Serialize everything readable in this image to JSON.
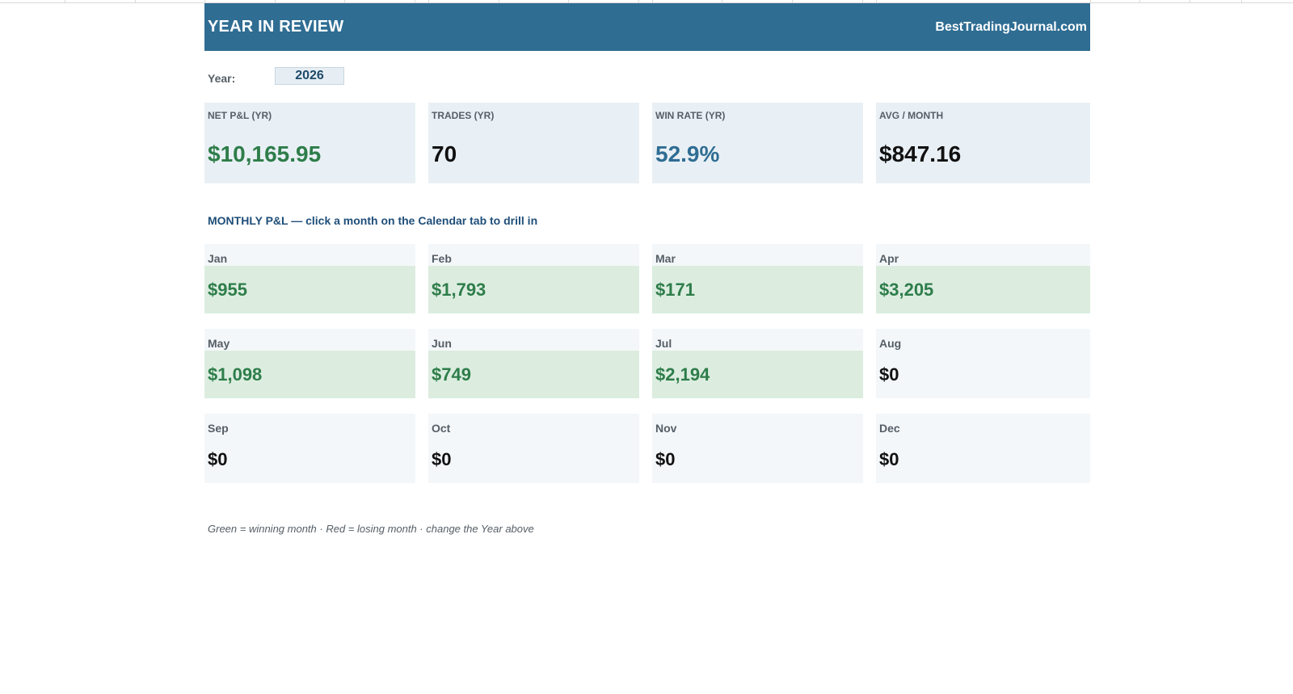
{
  "header": {
    "title": "YEAR IN REVIEW",
    "site": "BestTradingJournal.com"
  },
  "year": {
    "label": "Year:",
    "value": "2026"
  },
  "kpis": [
    {
      "label": "NET P&L (YR)",
      "value": "$10,165.95",
      "color": "#2e7d4a"
    },
    {
      "label": "TRADES (YR)",
      "value": "70",
      "color": "#111111"
    },
    {
      "label": "WIN RATE (YR)",
      "value": "52.9%",
      "color": "#2f6d93"
    },
    {
      "label": "AVG / MONTH",
      "value": "$847.16",
      "color": "#111111"
    }
  ],
  "section_title": "MONTHLY P&L — click a month on the Calendar tab to drill in",
  "months": [
    {
      "name": "Jan",
      "value": "$955",
      "status": "win"
    },
    {
      "name": "Feb",
      "value": "$1,793",
      "status": "win"
    },
    {
      "name": "Mar",
      "value": "$171",
      "status": "win"
    },
    {
      "name": "Apr",
      "value": "$3,205",
      "status": "win"
    },
    {
      "name": "May",
      "value": "$1,098",
      "status": "win"
    },
    {
      "name": "Jun",
      "value": "$749",
      "status": "win"
    },
    {
      "name": "Jul",
      "value": "$2,194",
      "status": "win"
    },
    {
      "name": "Aug",
      "value": "$0",
      "status": "flat"
    },
    {
      "name": "Sep",
      "value": "$0",
      "status": "flat"
    },
    {
      "name": "Oct",
      "value": "$0",
      "status": "flat"
    },
    {
      "name": "Nov",
      "value": "$0",
      "status": "flat"
    },
    {
      "name": "Dec",
      "value": "$0",
      "status": "flat"
    }
  ],
  "colors": {
    "win_text": "#2e7d4a",
    "win_bg": "#dcede0",
    "flat_text": "#111111",
    "header_bg": "#2f6d93"
  },
  "footnote": "Green = winning month · Red = losing month · change the Year above"
}
